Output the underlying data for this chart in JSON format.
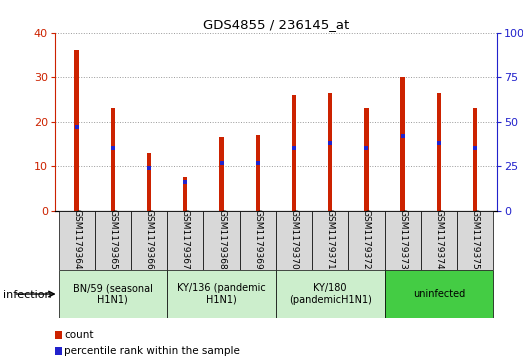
{
  "title": "GDS4855 / 236145_at",
  "samples": [
    "GSM1179364",
    "GSM1179365",
    "GSM1179366",
    "GSM1179367",
    "GSM1179368",
    "GSM1179369",
    "GSM1179370",
    "GSM1179371",
    "GSM1179372",
    "GSM1179373",
    "GSM1179374",
    "GSM1179375"
  ],
  "counts": [
    36,
    23,
    13,
    7.5,
    16.5,
    17,
    26,
    26.5,
    23,
    30,
    26.5,
    23
  ],
  "percentiles": [
    47,
    35,
    24,
    16,
    27,
    27,
    35,
    38,
    35,
    42,
    38,
    35
  ],
  "ylim_left": [
    0,
    40
  ],
  "ylim_right": [
    0,
    100
  ],
  "yticks_left": [
    0,
    10,
    20,
    30,
    40
  ],
  "yticks_right": [
    0,
    25,
    50,
    75,
    100
  ],
  "groups": [
    {
      "label": "BN/59 (seasonal\nH1N1)",
      "start": 0,
      "end": 3,
      "color": "#cceecc"
    },
    {
      "label": "KY/136 (pandemic\nH1N1)",
      "start": 3,
      "end": 6,
      "color": "#cceecc"
    },
    {
      "label": "KY/180\n(pandemicH1N1)",
      "start": 6,
      "end": 9,
      "color": "#cceecc"
    },
    {
      "label": "uninfected",
      "start": 9,
      "end": 12,
      "color": "#44cc44"
    }
  ],
  "bar_color": "#cc2200",
  "dot_color": "#2222cc",
  "bar_width": 0.12,
  "infection_label": "infection",
  "legend_count": "count",
  "legend_percentile": "percentile rank within the sample",
  "grid_color": "#888888",
  "group_bg_color": "#d8d8d8"
}
